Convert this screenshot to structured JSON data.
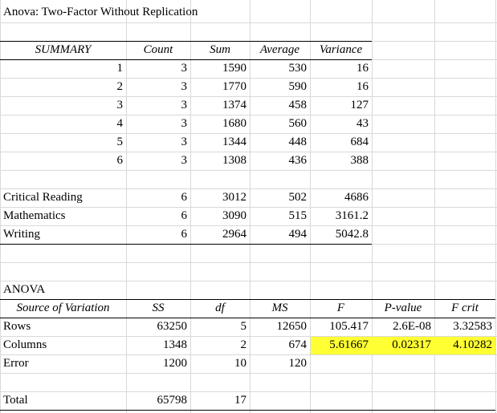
{
  "title": "Anova: Two-Factor Without Replication",
  "summary": {
    "headers": [
      "SUMMARY",
      "Count",
      "Sum",
      "Average",
      "Variance"
    ],
    "rows": [
      {
        "label": "1",
        "count": "3",
        "sum": "1590",
        "average": "530",
        "variance": "16"
      },
      {
        "label": "2",
        "count": "3",
        "sum": "1770",
        "average": "590",
        "variance": "16"
      },
      {
        "label": "3",
        "count": "3",
        "sum": "1374",
        "average": "458",
        "variance": "127"
      },
      {
        "label": "4",
        "count": "3",
        "sum": "1680",
        "average": "560",
        "variance": "43"
      },
      {
        "label": "5",
        "count": "3",
        "sum": "1344",
        "average": "448",
        "variance": "684"
      },
      {
        "label": "6",
        "count": "3",
        "sum": "1308",
        "average": "436",
        "variance": "388"
      }
    ],
    "columns": [
      {
        "label": "Critical Reading",
        "count": "6",
        "sum": "3012",
        "average": "502",
        "variance": "4686"
      },
      {
        "label": "Mathematics",
        "count": "6",
        "sum": "3090",
        "average": "515",
        "variance": "3161.2"
      },
      {
        "label": "Writing",
        "count": "6",
        "sum": "2964",
        "average": "494",
        "variance": "5042.8"
      }
    ]
  },
  "anova": {
    "title": "ANOVA",
    "headers": [
      "Source of Variation",
      "SS",
      "df",
      "MS",
      "F",
      "P-value",
      "F crit"
    ],
    "rows": [
      {
        "source": "Rows",
        "ss": "63250",
        "df": "5",
        "ms": "12650",
        "f": "105.417",
        "p": "2.6E-08",
        "fcrit": "3.32583"
      },
      {
        "source": "Columns",
        "ss": "1348",
        "df": "2",
        "ms": "674",
        "f": "5.61667",
        "p": "0.02317",
        "fcrit": "4.10282"
      },
      {
        "source": "Error",
        "ss": "1200",
        "df": "10",
        "ms": "120",
        "f": "",
        "p": "",
        "fcrit": ""
      }
    ],
    "total": {
      "source": "Total",
      "ss": "65798",
      "df": "17"
    }
  },
  "highlight_color": "#ffff33"
}
